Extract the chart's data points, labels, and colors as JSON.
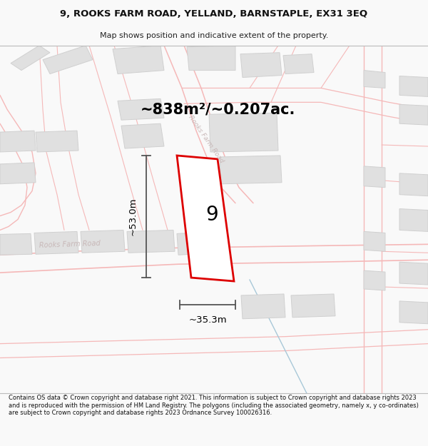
{
  "title_line1": "9, ROOKS FARM ROAD, YELLAND, BARNSTAPLE, EX31 3EQ",
  "title_line2": "Map shows position and indicative extent of the property.",
  "area_text": "~838m²/~0.207ac.",
  "width_label": "~35.3m",
  "height_label": "~53.0m",
  "property_number": "9",
  "footer_text": "Contains OS data © Crown copyright and database right 2021. This information is subject to Crown copyright and database rights 2023 and is reproduced with the permission of HM Land Registry. The polygons (including the associated geometry, namely x, y co-ordinates) are subject to Crown copyright and database rights 2023 Ordnance Survey 100026316.",
  "bg_color": "#f9f9f9",
  "map_bg": "#ffffff",
  "road_color": "#f5b8b8",
  "road_color2": "#f0c0c0",
  "building_color": "#e0e0e0",
  "building_edge": "#d0d0d0",
  "highlight_color": "#dd0000",
  "road_label_color": "#c8b8b8",
  "title_box_bg": "#f9f9f9",
  "footer_bg": "#f9f9f9",
  "dim_color": "#555555",
  "map_border": "#cccccc",
  "road_lw": 0.9
}
